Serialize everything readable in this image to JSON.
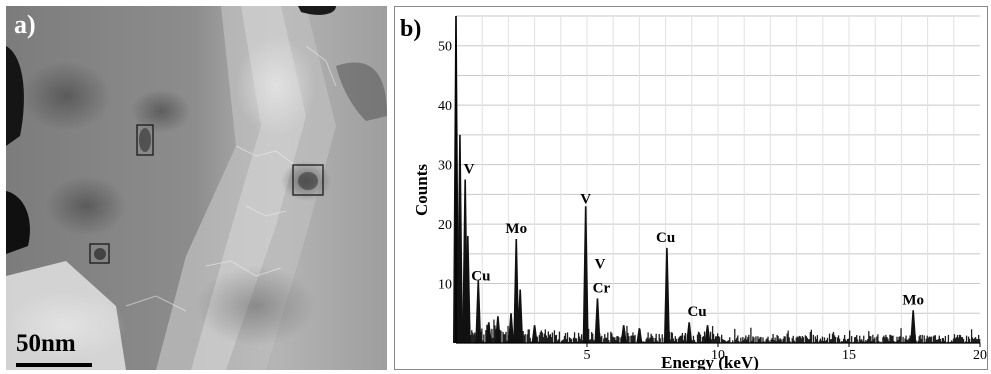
{
  "panel_a": {
    "label": "a)",
    "scale_bar": "50nm"
  },
  "chart_data": {
    "type": "bar",
    "label": "b)",
    "xlabel": "Energy (keV)",
    "ylabel": "Counts",
    "xlim": [
      0,
      20
    ],
    "ylim": [
      0,
      55
    ],
    "xticks": [
      "5",
      "10",
      "15",
      "20"
    ],
    "yticks": [
      "10",
      "20",
      "30",
      "40",
      "50"
    ],
    "grid": true,
    "peaks": [
      {
        "x": 0.0,
        "y": 55
      },
      {
        "x": 0.15,
        "y": 35
      },
      {
        "x": 0.35,
        "y": 27.5
      },
      {
        "x": 0.45,
        "y": 18
      },
      {
        "x": 0.85,
        "y": 10.5
      },
      {
        "x": 1.25,
        "y": 3.5
      },
      {
        "x": 1.6,
        "y": 4.5
      },
      {
        "x": 2.1,
        "y": 5
      },
      {
        "x": 2.3,
        "y": 17.5
      },
      {
        "x": 2.45,
        "y": 9
      },
      {
        "x": 3.0,
        "y": 3
      },
      {
        "x": 4.95,
        "y": 23
      },
      {
        "x": 5.4,
        "y": 7.5
      },
      {
        "x": 6.4,
        "y": 3
      },
      {
        "x": 7.0,
        "y": 2.5
      },
      {
        "x": 8.05,
        "y": 16
      },
      {
        "x": 8.9,
        "y": 3.5
      },
      {
        "x": 9.6,
        "y": 3
      },
      {
        "x": 17.45,
        "y": 5.5
      }
    ],
    "annotations": [
      {
        "text": "V",
        "x": 0.5,
        "y": 28.5
      },
      {
        "text": "Cu",
        "x": 0.95,
        "y": 10.5
      },
      {
        "text": "Mo",
        "x": 2.3,
        "y": 18.5
      },
      {
        "text": "V",
        "x": 4.95,
        "y": 23.5
      },
      {
        "text": "V",
        "x": 5.5,
        "y": 12.5
      },
      {
        "text": "Cr",
        "x": 5.55,
        "y": 8.5
      },
      {
        "text": "Cu",
        "x": 8.0,
        "y": 17.0
      },
      {
        "text": "Cu",
        "x": 9.2,
        "y": 4.5
      },
      {
        "text": "Mo",
        "x": 17.45,
        "y": 6.5
      }
    ]
  }
}
